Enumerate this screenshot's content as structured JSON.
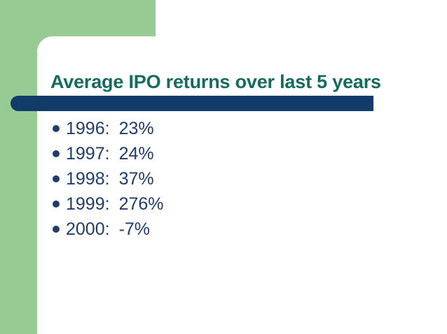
{
  "slide": {
    "title": "Average IPO returns over last 5 years",
    "bullets": [
      {
        "label": "1996:",
        "value": "23%"
      },
      {
        "label": "1997:",
        "value": "24%"
      },
      {
        "label": "1998:",
        "value": "37%"
      },
      {
        "label": "1999:",
        "value": "276%"
      },
      {
        "label": "2000:",
        "value": "-7%"
      }
    ],
    "colors": {
      "accent_green": "#98CA94",
      "bar_navy": "#113C69",
      "title_teal": "#166B60",
      "text_navy": "#1E3C6E",
      "card_white": "#FFFFFF"
    }
  }
}
